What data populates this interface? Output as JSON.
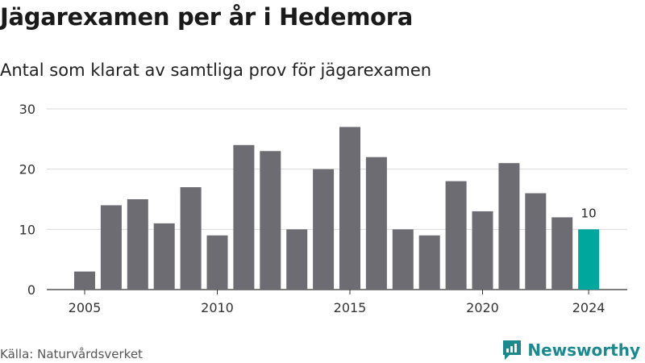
{
  "title": "Jägarexamen per år i Hedemora",
  "subtitle": "Antal som klarat av samtliga prov för jägarexamen",
  "source": "Källa: Naturvårdsverket",
  "brand": {
    "name": "Newsworthy",
    "icon": "newsworthy-logo-icon"
  },
  "colors": {
    "bar": "#6d6c73",
    "highlight": "#00a79d",
    "grid": "#d9d9d9",
    "brand": "#1a8a8f"
  },
  "chart_data": {
    "type": "bar",
    "categories": [
      2005,
      2006,
      2007,
      2008,
      2009,
      2010,
      2011,
      2012,
      2013,
      2014,
      2015,
      2016,
      2017,
      2018,
      2019,
      2020,
      2021,
      2022,
      2023,
      2024
    ],
    "values": [
      3,
      14,
      15,
      11,
      17,
      9,
      24,
      23,
      10,
      20,
      27,
      22,
      10,
      9,
      18,
      13,
      21,
      16,
      12,
      10
    ],
    "xticks": [
      2005,
      2010,
      2015,
      2020,
      2024
    ],
    "yticks": [
      0,
      10,
      20,
      30
    ],
    "ylim": [
      0,
      30
    ],
    "highlight": {
      "category": 2024,
      "label": "10"
    },
    "grid": true,
    "xlabel": "",
    "ylabel": ""
  }
}
